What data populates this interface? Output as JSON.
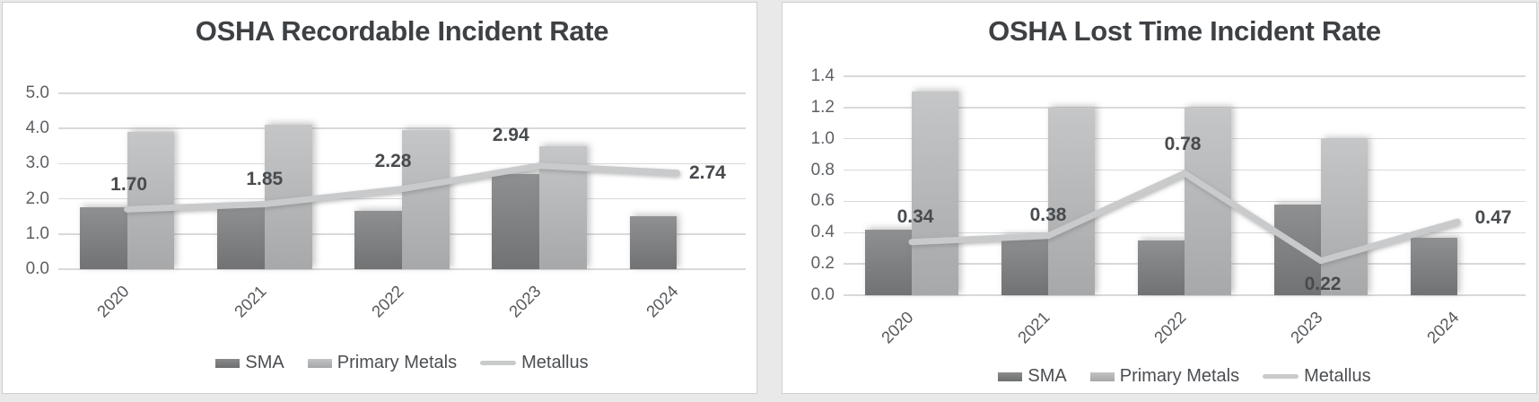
{
  "chart_data": [
    {
      "type": "combo-bar-line",
      "title": "OSHA Recordable Incident Rate",
      "categories": [
        "2020",
        "2021",
        "2022",
        "2023",
        "2024"
      ],
      "y_ticks": [
        "0.0",
        "1.0",
        "2.0",
        "3.0",
        "4.0",
        "5.0"
      ],
      "ylim": [
        0,
        5.0
      ],
      "grid": true,
      "legend_position": "bottom",
      "series": [
        {
          "name": "SMA",
          "chart": "bar",
          "values": [
            1.75,
            1.75,
            1.65,
            2.7,
            1.5
          ]
        },
        {
          "name": "Primary Metals",
          "chart": "bar",
          "values": [
            3.9,
            4.1,
            3.95,
            3.5,
            null
          ]
        },
        {
          "name": "Metallus",
          "chart": "line",
          "values": [
            1.7,
            1.85,
            2.28,
            2.94,
            2.74
          ],
          "data_labels": [
            "1.70",
            "1.85",
            "2.28",
            "2.94",
            "2.74"
          ]
        }
      ]
    },
    {
      "type": "combo-bar-line",
      "title": "OSHA Lost Time Incident Rate",
      "categories": [
        "2020",
        "2021",
        "2022",
        "2023",
        "2024"
      ],
      "y_ticks": [
        "0.0",
        "0.2",
        "0.4",
        "0.6",
        "0.8",
        "1.0",
        "1.2",
        "1.4"
      ],
      "ylim": [
        0,
        1.4
      ],
      "grid": true,
      "legend_position": "bottom",
      "series": [
        {
          "name": "SMA",
          "chart": "bar",
          "values": [
            0.42,
            0.38,
            0.35,
            0.58,
            0.37
          ]
        },
        {
          "name": "Primary Metals",
          "chart": "bar",
          "values": [
            1.3,
            1.2,
            1.2,
            1.0,
            null
          ]
        },
        {
          "name": "Metallus",
          "chart": "line",
          "values": [
            0.34,
            0.38,
            0.78,
            0.22,
            0.47
          ],
          "data_labels": [
            "0.34",
            "0.38",
            "0.78",
            "0.22",
            "0.47"
          ]
        }
      ]
    }
  ],
  "colors": {
    "sma_bar": "#7f8082",
    "primary_metals_bar": "#b5b6b8",
    "metallus_line": "#c9cacb",
    "title_text": "#3e4144",
    "axis_text": "#5d6064",
    "data_label_text": "#484b4e",
    "gridline": "#d9d9d9",
    "panel_background": "#ffffff",
    "panel_border": "#cfcfcf"
  }
}
